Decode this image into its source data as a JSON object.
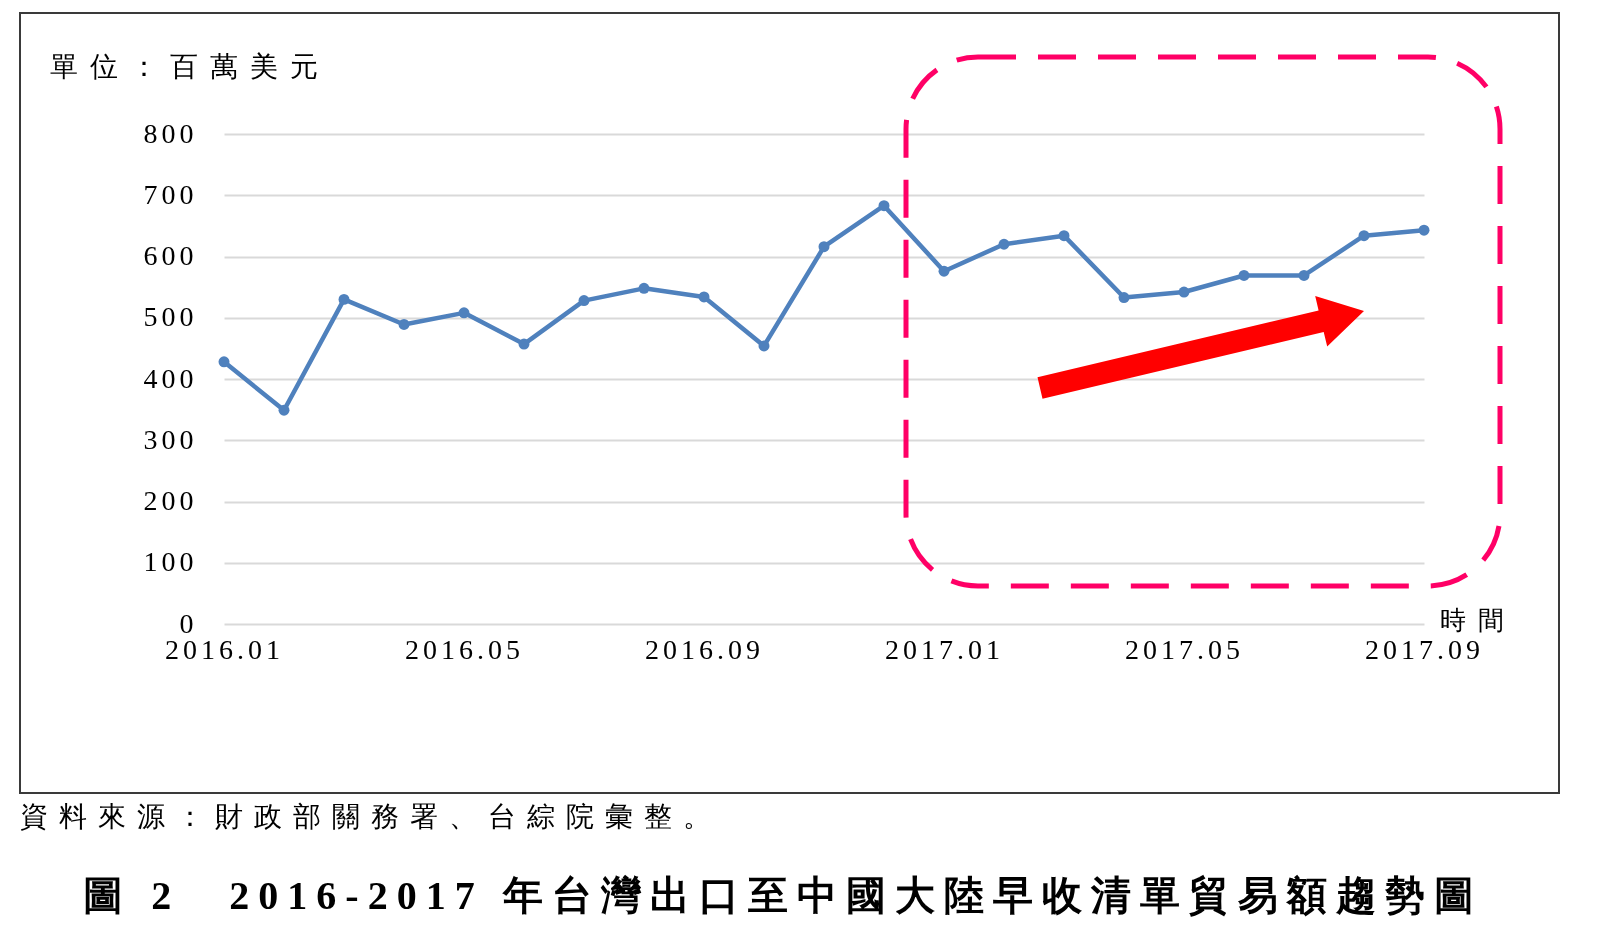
{
  "chart_data": {
    "type": "line",
    "title": "圖 2　2016-2017 年台灣出口至中國大陸早收清單貿易額趨勢圖",
    "xlabel": "時間",
    "ylabel": "單位：百萬美元",
    "annotations": [
      "資料來源：財政部關務署、台綜院彙整。"
    ],
    "categories": [
      "2016.01",
      null,
      null,
      null,
      "2016.05",
      null,
      null,
      null,
      "2016.09",
      null,
      null,
      null,
      "2017.01",
      null,
      null,
      null,
      "2017.05",
      null,
      null,
      null,
      "2017.09"
    ],
    "series": [
      {
        "color": "#4f81bd",
        "values": [
          428,
          349,
          530,
          489,
          508,
          457,
          528,
          548,
          534,
          454,
          616,
          683,
          576,
          620,
          634,
          533,
          542,
          569,
          569,
          634,
          643
        ]
      }
    ],
    "ylim": [
      0,
      800
    ],
    "yticks": [
      0,
      100,
      200,
      300,
      400,
      500,
      600,
      700,
      800
    ],
    "grid": "y",
    "marker": "circle",
    "line_style": "solid"
  }
}
